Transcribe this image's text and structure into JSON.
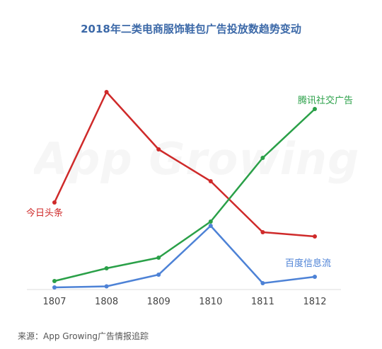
{
  "chart_data": {
    "type": "line",
    "title": "2018年二类电商服饰鞋包广告投放数趋势变动",
    "categories": [
      "1807",
      "1808",
      "1809",
      "1810",
      "1811",
      "1812"
    ],
    "series": [
      {
        "name": "今日头条",
        "color": "#cf2a2a",
        "values": [
          41,
          93,
          66,
          51,
          27,
          25
        ]
      },
      {
        "name": "腾讯社交广告",
        "color": "#2aa048",
        "values": [
          4,
          10,
          15,
          32,
          62,
          85
        ]
      },
      {
        "name": "百度信息流",
        "color": "#4d82d6",
        "values": [
          1,
          1.5,
          7,
          30,
          3,
          6
        ]
      }
    ],
    "ylim": [
      0,
      100
    ],
    "grid": false,
    "legend": "direct-labels"
  },
  "source": "来源：App Growing广告情报追踪",
  "watermark": "App Growing"
}
